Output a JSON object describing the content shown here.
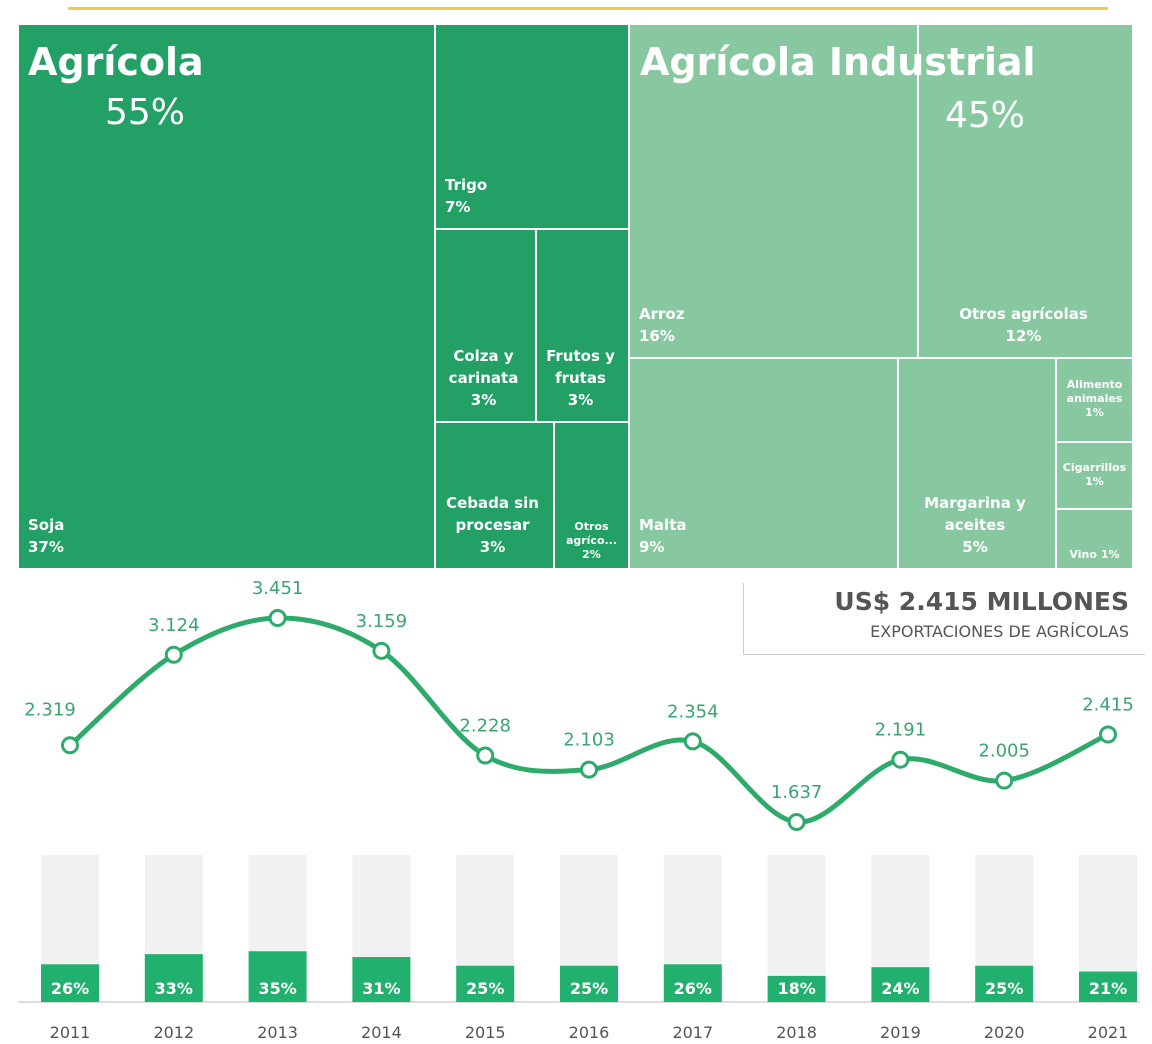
{
  "chart_data": [
    {
      "type": "treemap",
      "groups": [
        {
          "name": "Agrícola",
          "value": 55,
          "value_label": "55%",
          "color": "#22a066",
          "children": [
            {
              "name": "Soja",
              "value": 37,
              "value_label": "37%"
            },
            {
              "name": "Trigo",
              "value": 7,
              "value_label": "7%"
            },
            {
              "name": "Colza y carinata",
              "value": 3,
              "value_label": "3%"
            },
            {
              "name": "Frutos y frutas",
              "value": 3,
              "value_label": "3%"
            },
            {
              "name": "Cebada sin procesar",
              "value": 3,
              "value_label": "3%"
            },
            {
              "name": "Otros agríco...",
              "value": 2,
              "value_label": "2%"
            }
          ]
        },
        {
          "name": "Agrícola Industrial",
          "value": 45,
          "value_label": "45%",
          "color": "#88c8a1",
          "children": [
            {
              "name": "Arroz",
              "value": 16,
              "value_label": "16%"
            },
            {
              "name": "Otros agrícolas",
              "value": 12,
              "value_label": "12%"
            },
            {
              "name": "Malta",
              "value": 9,
              "value_label": "9%"
            },
            {
              "name": "Margarina y aceites",
              "value": 5,
              "value_label": "5%"
            },
            {
              "name": "Alimento animales",
              "value": 1,
              "value_label": "1%"
            },
            {
              "name": "Cigarrillos",
              "value": 1,
              "value_label": "1%"
            },
            {
              "name": "Vino",
              "value": 1,
              "value_label": "1%"
            }
          ]
        }
      ]
    },
    {
      "type": "combo",
      "categories": [
        "2011",
        "2012",
        "2013",
        "2014",
        "2015",
        "2016",
        "2017",
        "2018",
        "2019",
        "2020",
        "2021"
      ],
      "line": {
        "color": "#2eaa6b",
        "values": [
          2319,
          3124,
          3451,
          3159,
          2228,
          2103,
          2354,
          1637,
          2191,
          2005,
          2415
        ],
        "value_labels": [
          "2.319",
          "3.124",
          "3.451",
          "3.159",
          "2.228",
          "2.103",
          "2.354",
          "1.637",
          "2.191",
          "2.005",
          "2.415"
        ]
      },
      "bars": {
        "color": "#22b06e",
        "values": [
          26,
          33,
          35,
          31,
          25,
          25,
          26,
          18,
          24,
          25,
          21
        ],
        "value_labels": [
          "26%",
          "33%",
          "35%",
          "31%",
          "25%",
          "25%",
          "26%",
          "18%",
          "24%",
          "25%",
          "21%"
        ]
      },
      "summary": {
        "amount": "US$ 2.415 MILLONES",
        "caption": "EXPORTACIONES DE AGRÍCOLAS"
      }
    }
  ]
}
